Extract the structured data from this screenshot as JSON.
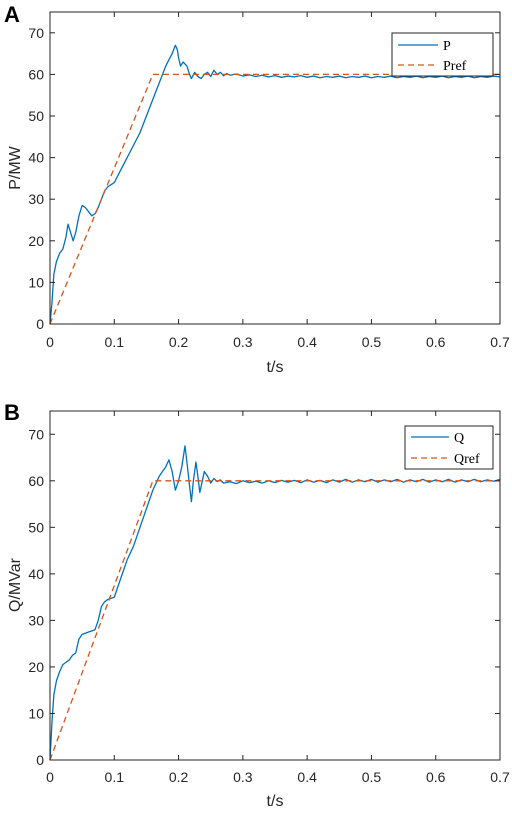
{
  "chart_data": [
    {
      "panel_label": "A",
      "type": "line",
      "xlabel": "t/s",
      "ylabel": "P/MW",
      "xlim": [
        0,
        0.7
      ],
      "ylim": [
        0,
        75
      ],
      "xticks": [
        0,
        0.1,
        0.2,
        0.3,
        0.4,
        0.5,
        0.6,
        0.7
      ],
      "xtick_labels": [
        "0",
        "0.1",
        "0.2",
        "0.3",
        "0.4",
        "0.5",
        "0.6",
        "0.7"
      ],
      "yticks": [
        0,
        10,
        20,
        30,
        40,
        50,
        60,
        70
      ],
      "ytick_labels": [
        "0",
        "10",
        "20",
        "30",
        "40",
        "50",
        "60",
        "70"
      ],
      "grid": false,
      "legend_position": "top-right",
      "series": [
        {
          "name": "P",
          "color": "#0072BD",
          "style": "solid",
          "x": [
            0,
            0.003,
            0.006,
            0.01,
            0.015,
            0.02,
            0.025,
            0.028,
            0.032,
            0.036,
            0.04,
            0.045,
            0.05,
            0.055,
            0.06,
            0.065,
            0.07,
            0.075,
            0.08,
            0.085,
            0.09,
            0.1,
            0.11,
            0.12,
            0.13,
            0.14,
            0.15,
            0.16,
            0.17,
            0.18,
            0.19,
            0.195,
            0.198,
            0.2,
            0.203,
            0.207,
            0.21,
            0.213,
            0.217,
            0.22,
            0.225,
            0.23,
            0.235,
            0.24,
            0.245,
            0.25,
            0.255,
            0.26,
            0.265,
            0.27,
            0.275,
            0.28,
            0.29,
            0.3,
            0.31,
            0.32,
            0.33,
            0.34,
            0.35,
            0.36,
            0.37,
            0.38,
            0.39,
            0.4,
            0.41,
            0.42,
            0.43,
            0.44,
            0.45,
            0.46,
            0.47,
            0.48,
            0.49,
            0.5,
            0.51,
            0.52,
            0.53,
            0.54,
            0.55,
            0.56,
            0.57,
            0.58,
            0.59,
            0.6,
            0.61,
            0.62,
            0.63,
            0.64,
            0.65,
            0.66,
            0.67,
            0.68,
            0.69,
            0.7
          ],
          "values": [
            0,
            5,
            12,
            15,
            17,
            18,
            21,
            24,
            22,
            20,
            22,
            26,
            28.5,
            28,
            27,
            26,
            26.5,
            28,
            30,
            32,
            33,
            34,
            37,
            40,
            43,
            46,
            50,
            54,
            58,
            62,
            65,
            67,
            66,
            64,
            62,
            63,
            62.5,
            62,
            60,
            59,
            60.5,
            59.5,
            59,
            60,
            60.5,
            59.5,
            61,
            60,
            60.5,
            59.7,
            60.2,
            59.8,
            60.1,
            59.6,
            59.9,
            59.5,
            59.8,
            59.4,
            59.7,
            59.3,
            59.6,
            59.4,
            59.7,
            59.3,
            59.6,
            59.2,
            59.5,
            59.3,
            59.6,
            59.2,
            59.5,
            59.3,
            59.6,
            59.2,
            59.5,
            59.3,
            59.6,
            59.2,
            59.5,
            59.3,
            59.6,
            59.2,
            59.5,
            59.3,
            59.6,
            59.2,
            59.5,
            59.3,
            59.6,
            59.2,
            59.5,
            59.3,
            59.6,
            59.4
          ]
        },
        {
          "name": "Pref",
          "color": "#D95319",
          "style": "dashed",
          "x": [
            0,
            0.16,
            0.7
          ],
          "values": [
            0,
            60,
            60
          ]
        }
      ]
    },
    {
      "panel_label": "B",
      "type": "line",
      "xlabel": "t/s",
      "ylabel": "Q/MVar",
      "xlim": [
        0,
        0.7
      ],
      "ylim": [
        0,
        75
      ],
      "xticks": [
        0,
        0.1,
        0.2,
        0.3,
        0.4,
        0.5,
        0.6,
        0.7
      ],
      "xtick_labels": [
        "0",
        "0.1",
        "0.2",
        "0.3",
        "0.4",
        "0.5",
        "0.6",
        "0.7"
      ],
      "yticks": [
        0,
        10,
        20,
        30,
        40,
        50,
        60,
        70
      ],
      "ytick_labels": [
        "0",
        "10",
        "20",
        "30",
        "40",
        "50",
        "60",
        "70"
      ],
      "grid": false,
      "legend_position": "top-right",
      "series": [
        {
          "name": "Q",
          "color": "#0072BD",
          "style": "solid",
          "x": [
            0,
            0.003,
            0.006,
            0.01,
            0.015,
            0.02,
            0.025,
            0.03,
            0.035,
            0.04,
            0.045,
            0.05,
            0.06,
            0.07,
            0.075,
            0.08,
            0.085,
            0.09,
            0.1,
            0.11,
            0.12,
            0.13,
            0.14,
            0.15,
            0.16,
            0.17,
            0.18,
            0.185,
            0.19,
            0.195,
            0.2,
            0.205,
            0.21,
            0.213,
            0.217,
            0.22,
            0.223,
            0.227,
            0.23,
            0.233,
            0.237,
            0.24,
            0.245,
            0.25,
            0.255,
            0.26,
            0.265,
            0.27,
            0.28,
            0.29,
            0.3,
            0.31,
            0.32,
            0.33,
            0.34,
            0.35,
            0.36,
            0.37,
            0.38,
            0.39,
            0.4,
            0.41,
            0.42,
            0.43,
            0.44,
            0.45,
            0.46,
            0.47,
            0.48,
            0.49,
            0.5,
            0.51,
            0.52,
            0.53,
            0.54,
            0.55,
            0.56,
            0.57,
            0.58,
            0.59,
            0.6,
            0.61,
            0.62,
            0.63,
            0.64,
            0.65,
            0.66,
            0.67,
            0.68,
            0.69,
            0.7
          ],
          "values": [
            0,
            8,
            14,
            17,
            19,
            20.5,
            21,
            21.5,
            22.5,
            23,
            26,
            27,
            27.5,
            28,
            30,
            33,
            34,
            34.5,
            35,
            39,
            43,
            46,
            50,
            54,
            58,
            61,
            63,
            64.5,
            62,
            58,
            60,
            63,
            67.5,
            64,
            59,
            55.5,
            60,
            64,
            61,
            57.5,
            60,
            62,
            61,
            59.5,
            60.5,
            59.8,
            60.2,
            59.5,
            59.8,
            59.4,
            60,
            59.6,
            59.9,
            59.5,
            60,
            59.6,
            60.1,
            59.7,
            60.1,
            59.6,
            60.2,
            59.7,
            60.1,
            59.6,
            60.2,
            59.7,
            60.3,
            59.7,
            60.2,
            59.8,
            60.3,
            59.7,
            60.2,
            59.8,
            60.3,
            59.7,
            60.2,
            59.8,
            60.3,
            59.7,
            60.2,
            59.8,
            60.3,
            59.7,
            60.2,
            59.8,
            60.3,
            59.8,
            60.2,
            59.9,
            60.3
          ]
        },
        {
          "name": "Qref",
          "color": "#D95319",
          "style": "dashed",
          "x": [
            0,
            0.16,
            0.7
          ],
          "values": [
            0,
            60,
            60
          ]
        }
      ]
    }
  ]
}
